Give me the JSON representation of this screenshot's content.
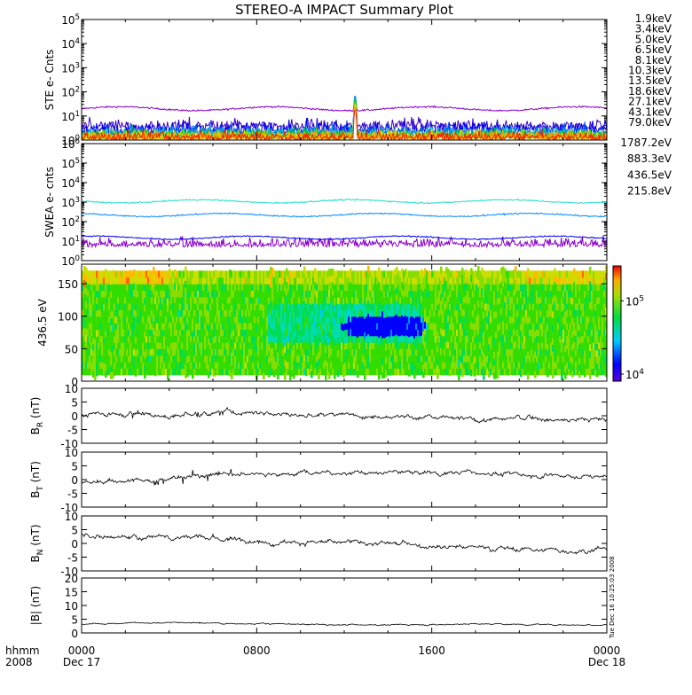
{
  "title": "STEREO-A IMPACT Summary Plot",
  "side_stamp": "Tue Dec 16 10:25:03 2008",
  "time_axis": {
    "row1_labels": [
      "hhmm",
      "0000",
      "0800",
      "1600",
      "0000"
    ],
    "row2_labels": [
      "2008",
      "Dec 17",
      "Dec 18"
    ]
  },
  "colors": {
    "ste": [
      "#8a00cc",
      "#3a00cc",
      "#0000ee",
      "#0066ee",
      "#00bbdd",
      "#00c060",
      "#44cc00",
      "#aacc00",
      "#dddd00",
      "#ff9900",
      "#ee2200"
    ],
    "swea": [
      "#8a00cc",
      "#0000ee",
      "#0088ff",
      "#22ddcc"
    ]
  },
  "chart_data": [
    {
      "type": "line",
      "panel": "ste",
      "ylabel": "STE e- Cnts",
      "yscale": "log",
      "ylim": [
        1,
        100000
      ],
      "y_ticks": [
        {
          "base": "10",
          "exp": "0"
        },
        {
          "base": "10",
          "exp": "1"
        },
        {
          "base": "10",
          "exp": "2"
        },
        {
          "base": "10",
          "exp": "3"
        },
        {
          "base": "10",
          "exp": "4"
        },
        {
          "base": "10",
          "exp": "5"
        }
      ],
      "x_range_hours": [
        0,
        24
      ],
      "series": [
        {
          "name": "1.9keV",
          "baseline": 20,
          "spike_at_hour": 12.5,
          "spike_peak": 25
        },
        {
          "name": "3.4keV",
          "baseline": 2.6,
          "spike_at_hour": 12.5,
          "spike_peak": 50
        },
        {
          "name": "5.0keV",
          "baseline": 1.9,
          "spike_at_hour": 12.5,
          "spike_peak": 70
        },
        {
          "name": "6.5keV",
          "baseline": 1.5,
          "spike_at_hour": 12.5,
          "spike_peak": 80
        },
        {
          "name": "8.1keV",
          "baseline": 1.3,
          "spike_at_hour": 12.5,
          "spike_peak": 70
        },
        {
          "name": "10.3keV",
          "baseline": 1.2,
          "spike_at_hour": 12.5,
          "spike_peak": 60
        },
        {
          "name": "13.5keV",
          "baseline": 1.1,
          "spike_at_hour": 12.5,
          "spike_peak": 50
        },
        {
          "name": "18.6keV",
          "baseline": 1.05,
          "spike_at_hour": 12.5,
          "spike_peak": 40
        },
        {
          "name": "27.1keV",
          "baseline": 1.02,
          "spike_at_hour": 12.5,
          "spike_peak": 30
        },
        {
          "name": "43.1keV",
          "baseline": 1.01,
          "spike_at_hour": 12.5,
          "spike_peak": 25
        },
        {
          "name": "79.0keV",
          "baseline": 1.0,
          "spike_at_hour": 12.5,
          "spike_peak": 20
        }
      ]
    },
    {
      "type": "line",
      "panel": "swea",
      "ylabel": "SWEA e- cnts",
      "yscale": "log",
      "ylim": [
        1,
        1000000
      ],
      "y_ticks": [
        {
          "base": "10",
          "exp": "0"
        },
        {
          "base": "10",
          "exp": "1"
        },
        {
          "base": "10",
          "exp": "2"
        },
        {
          "base": "10",
          "exp": "3"
        },
        {
          "base": "10",
          "exp": "4"
        },
        {
          "base": "10",
          "exp": "5"
        },
        {
          "base": "10",
          "exp": "6"
        }
      ],
      "x_range_hours": [
        0,
        24
      ],
      "series": [
        {
          "name": "1787.2eV",
          "baseline": 5
        },
        {
          "name": "883.3eV",
          "baseline": 15
        },
        {
          "name": "436.5eV",
          "baseline": 220
        },
        {
          "name": "215.8eV",
          "baseline": 1100
        }
      ]
    },
    {
      "type": "heatmap",
      "panel": "spectrogram",
      "ylabel": "436.5 eV",
      "ylim": [
        0,
        180
      ],
      "y_ticks": [
        "0",
        "50",
        "100",
        "150"
      ],
      "x_range_hours": [
        0,
        24
      ],
      "y_range_filled": [
        10,
        170
      ],
      "colorbar": {
        "scale": "log",
        "range": [
          8000,
          300000
        ],
        "tick_labels": [
          {
            "base": "10",
            "exp": "5"
          },
          {
            "base": "10",
            "exp": "4"
          }
        ]
      },
      "blue_feature": {
        "hour": 13.8,
        "y_center": 85
      }
    },
    {
      "type": "line",
      "panel": "br",
      "ylabel": {
        "main": "B",
        "sub": "R",
        "unit": " (nT)"
      },
      "ylim": [
        -10,
        10
      ],
      "y_ticks": [
        "10",
        "5",
        "0",
        "-5",
        "-10"
      ],
      "x_range_hours": [
        0,
        24
      ],
      "series": [
        {
          "trend_hours": [
            0,
            2,
            4,
            6,
            8,
            10,
            12,
            14,
            16,
            18,
            20,
            22,
            24
          ],
          "trend_values": [
            0.5,
            1,
            0,
            1,
            1.5,
            0.5,
            0,
            0.5,
            -1,
            -1.5,
            -1,
            -1,
            -1.5
          ]
        }
      ]
    },
    {
      "type": "line",
      "panel": "bt",
      "ylabel": {
        "main": "B",
        "sub": "T",
        "unit": " (nT)"
      },
      "ylim": [
        -10,
        10
      ],
      "y_ticks": [
        "10",
        "5",
        "0",
        "-5",
        "-10"
      ],
      "x_range_hours": [
        0,
        24
      ],
      "series": [
        {
          "trend_hours": [
            0,
            2,
            4,
            6,
            8,
            10,
            12,
            14,
            16,
            18,
            20,
            22,
            24
          ],
          "trend_values": [
            -1,
            -0.5,
            0,
            1.5,
            2.5,
            2.5,
            2.5,
            2.5,
            2.5,
            2.5,
            2,
            1.5,
            1
          ]
        }
      ]
    },
    {
      "type": "line",
      "panel": "bn",
      "ylabel": {
        "main": "B",
        "sub": "N",
        "unit": " (nT)"
      },
      "ylim": [
        -10,
        10
      ],
      "y_ticks": [
        "10",
        "5",
        "0",
        "-5",
        "-10"
      ],
      "x_range_hours": [
        0,
        24
      ],
      "series": [
        {
          "trend_hours": [
            0,
            2,
            4,
            6,
            8,
            10,
            12,
            14,
            16,
            18,
            20,
            22,
            24
          ],
          "trend_values": [
            3,
            2,
            2.5,
            1.5,
            1,
            0.5,
            0,
            0,
            -0.5,
            -1,
            -2,
            -2.5,
            -2
          ]
        }
      ]
    },
    {
      "type": "line",
      "panel": "bmag",
      "ylabel": "|B| (nT)",
      "ylim": [
        0,
        20
      ],
      "y_ticks": [
        "20",
        "15",
        "10",
        "5",
        "0"
      ],
      "x_range_hours": [
        0,
        24
      ],
      "series": [
        {
          "trend_hours": [
            0,
            2,
            4,
            6,
            8,
            10,
            12,
            14,
            16,
            18,
            20,
            22,
            24
          ],
          "trend_values": [
            3.2,
            3.5,
            3.8,
            3.5,
            3.3,
            3.2,
            3.0,
            3.0,
            3.1,
            3.3,
            3.2,
            3.0,
            3.1
          ]
        }
      ]
    }
  ]
}
